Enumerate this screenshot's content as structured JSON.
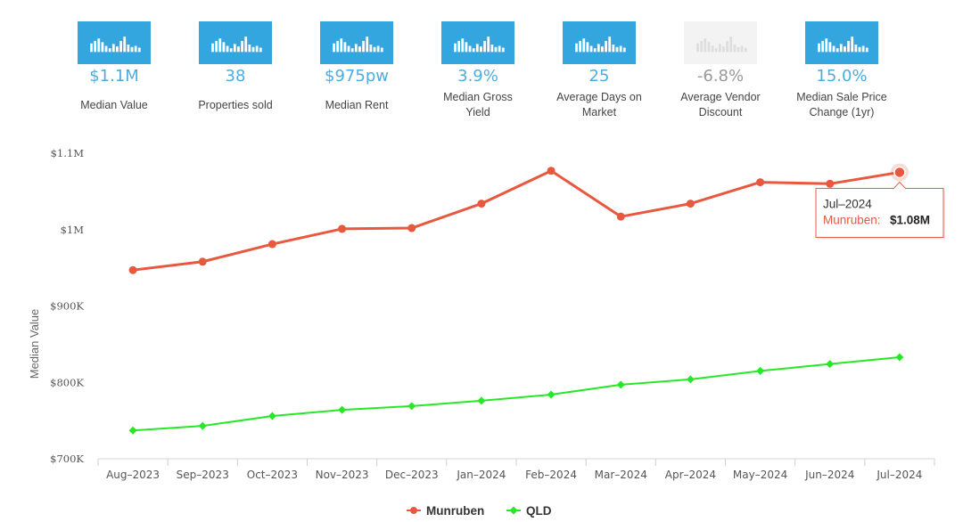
{
  "stats": [
    {
      "value": "$1.1M",
      "label_lines": [
        "Median Value"
      ],
      "muted": false
    },
    {
      "value": "38",
      "label_lines": [
        "Properties sold"
      ],
      "muted": false
    },
    {
      "value": "$975pw",
      "label_lines": [
        "Median Rent"
      ],
      "muted": false
    },
    {
      "value": "3.9%",
      "label_lines": [
        "Median Gross",
        "Yield"
      ],
      "muted": false
    },
    {
      "value": "25",
      "label_lines": [
        "Average Days on",
        "Market"
      ],
      "muted": false
    },
    {
      "value": "-6.8%",
      "label_lines": [
        "Average Vendor",
        "Discount"
      ],
      "muted": true
    },
    {
      "value": "15.0%",
      "label_lines": [
        "Median Sale Price",
        "Change (1yr)"
      ],
      "muted": false
    }
  ],
  "colors": {
    "tile": "#33a6df",
    "tile_muted": "#f3f3f3",
    "munruben": "#e8583f",
    "qld": "#27e827"
  },
  "chart_data": {
    "type": "line",
    "categories": [
      "Aug–2023",
      "Sep–2023",
      "Oct–2023",
      "Nov–2023",
      "Dec–2023",
      "Jan–2024",
      "Feb–2024",
      "Mar–2024",
      "Apr–2024",
      "May–2024",
      "Jun–2024",
      "Jul–2024"
    ],
    "series": [
      {
        "name": "Munruben",
        "marker": "circle",
        "values": [
          947,
          958,
          981,
          1001,
          1002,
          1034,
          1077,
          1017,
          1034,
          1062,
          1060,
          1075
        ]
      },
      {
        "name": "QLD",
        "marker": "diamond",
        "values": [
          737,
          743,
          756,
          764,
          769,
          776,
          784,
          797,
          804,
          815,
          824,
          833
        ]
      }
    ],
    "value_unit": "thousand dollars",
    "ylabel": "Median Value",
    "xlabel": "",
    "ylim": [
      700,
      1100
    ],
    "y_ticks": [
      700,
      800,
      900,
      1000,
      1100
    ],
    "y_tick_labels": [
      "$700K",
      "$800K",
      "$900K",
      "$1M",
      "$1.1M"
    ],
    "legend_position": "bottom-center",
    "tooltip": {
      "title": "Jul–2024",
      "series": "Munruben",
      "series_label": "Munruben:",
      "value": "$1.08M",
      "category_index": 11
    }
  }
}
